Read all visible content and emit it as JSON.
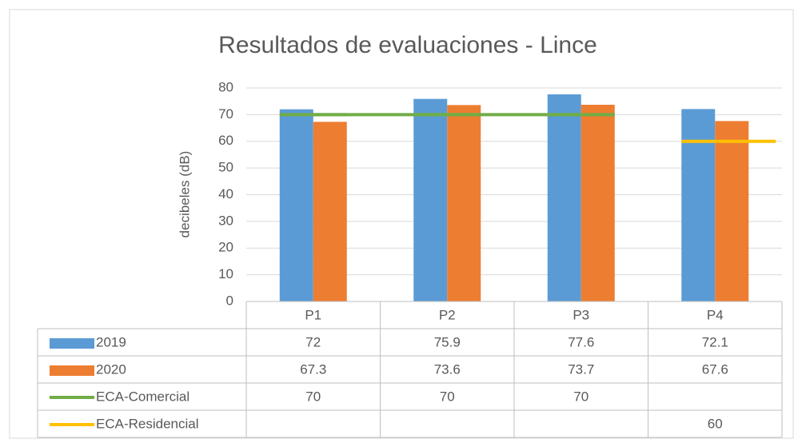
{
  "chart_data": {
    "type": "bar",
    "title": "Resultados de evaluaciones - Lince",
    "y_label": "decibeles (dB)",
    "categories": [
      "P1",
      "P2",
      "P3",
      "P4"
    ],
    "series": [
      {
        "name": "2019",
        "type": "bar",
        "color": "#5b9bd5",
        "values": [
          72,
          75.9,
          77.6,
          72.1
        ]
      },
      {
        "name": "2020",
        "type": "bar",
        "color": "#ed7d31",
        "values": [
          67.3,
          73.6,
          73.7,
          67.6
        ]
      },
      {
        "name": "ECA-Comercial",
        "type": "line",
        "color": "#70ad47",
        "values": [
          70,
          70,
          70,
          null
        ]
      },
      {
        "name": "ECA-Residencial",
        "type": "line",
        "color": "#ffc000",
        "values": [
          null,
          null,
          null,
          60
        ]
      }
    ],
    "ylim": [
      0,
      80
    ],
    "yticks": [
      0,
      10,
      20,
      30,
      40,
      50,
      60,
      70,
      80
    ],
    "grid": true,
    "data_table": true
  }
}
